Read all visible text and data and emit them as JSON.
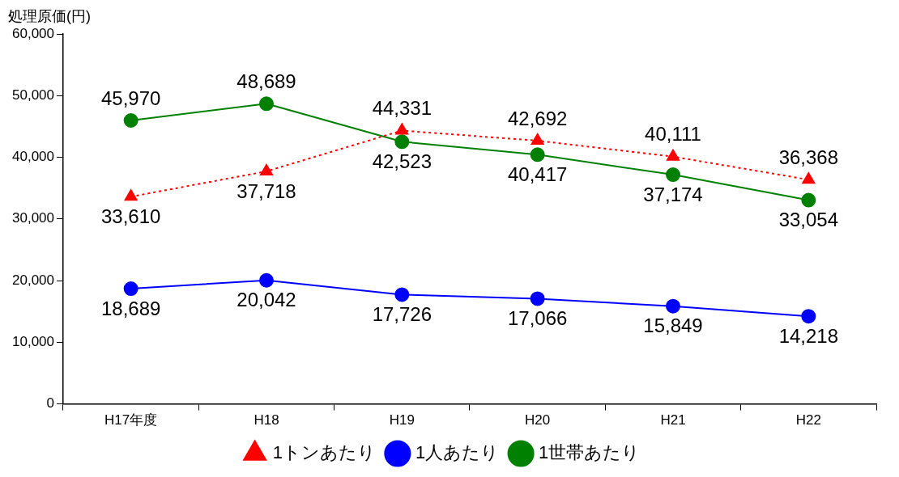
{
  "chart_data": {
    "type": "line",
    "ylabel": "処理原価(円)",
    "categories": [
      "H17年度",
      "H18",
      "H19",
      "H20",
      "H21",
      "H22"
    ],
    "series": [
      {
        "name": "1トンあたり",
        "color": "#ff0000",
        "marker": "triangle",
        "line_style": "dotted",
        "values": [
          33610,
          37718,
          44331,
          42692,
          40111,
          36368
        ],
        "value_labels": [
          "33,610",
          "37,718",
          "44,331",
          "42,692",
          "40,111",
          "36,368"
        ]
      },
      {
        "name": "1人あたり",
        "color": "#0000ff",
        "marker": "circle",
        "line_style": "solid",
        "values": [
          18689,
          20042,
          17726,
          17066,
          15849,
          14218
        ],
        "value_labels": [
          "18,689",
          "20,042",
          "17,726",
          "17,066",
          "15,849",
          "14,218"
        ]
      },
      {
        "name": "1世帯あたり",
        "color": "#008000",
        "marker": "circle",
        "line_style": "solid",
        "values": [
          45970,
          48689,
          42523,
          40417,
          37174,
          33054
        ],
        "value_labels": [
          "45,970",
          "48,689",
          "42,523",
          "40,417",
          "37,174",
          "33,054"
        ]
      }
    ],
    "ylim": [
      0,
      60000
    ],
    "yticks": [
      {
        "value": 0,
        "label": "0"
      },
      {
        "value": 10000,
        "label": "10,000"
      },
      {
        "value": 20000,
        "label": "20,000"
      },
      {
        "value": 30000,
        "label": "30,000"
      },
      {
        "value": 40000,
        "label": "40,000"
      },
      {
        "value": 50000,
        "label": "50,000"
      },
      {
        "value": 60000,
        "label": "60,000"
      }
    ],
    "grid": false,
    "legend": "bottom"
  }
}
